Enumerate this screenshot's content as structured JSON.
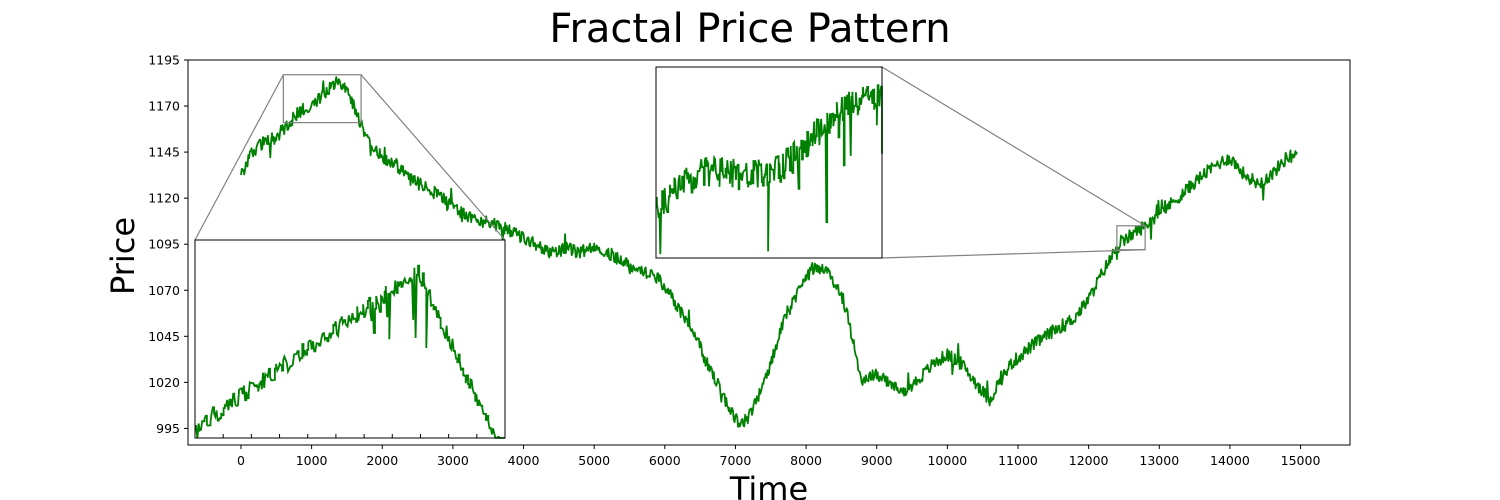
{
  "chart_data": {
    "type": "line",
    "title": "Fractal Price Pattern",
    "xlabel": "Time",
    "ylabel": "Price",
    "xlim": [
      -750,
      15700
    ],
    "ylim": [
      986,
      1195
    ],
    "x_ticks": [
      "0",
      "1000",
      "2000",
      "3000",
      "4000",
      "5000",
      "6000",
      "7000",
      "8000",
      "9000",
      "10000",
      "11000",
      "12000",
      "13000",
      "14000",
      "15000"
    ],
    "y_ticks": [
      "995",
      "1020",
      "1045",
      "1070",
      "1095",
      "1120",
      "1145",
      "1170",
      "1195"
    ],
    "grid": false,
    "line_color": "#008000",
    "connector_color": "#808080",
    "series": [
      {
        "x": [
          0,
          150,
          300,
          450,
          600,
          750,
          900,
          1050,
          1200,
          1350,
          1500,
          1650,
          1800,
          2000,
          2200,
          2400,
          2600,
          2800,
          3000,
          3200,
          3400,
          3600,
          3800,
          4000,
          4200,
          4400,
          4600,
          4800,
          5000,
          5200,
          5400,
          5600,
          5800,
          6000,
          6200,
          6400,
          6600,
          6800,
          7000,
          7100,
          7200,
          7350,
          7500,
          7700,
          7900,
          8100,
          8300,
          8500,
          8600,
          8700,
          8800,
          9000,
          9200,
          9400,
          9600,
          9800,
          10000,
          10200,
          10400,
          10600,
          10700,
          10900,
          11200,
          11500,
          11800,
          12000,
          12200,
          12400,
          12600,
          12800,
          13000,
          13200,
          13400,
          13600,
          13800,
          14000,
          14200,
          14400,
          14600,
          14800,
          14950
        ],
        "y": [
          1132,
          1145,
          1150,
          1152,
          1157,
          1164,
          1169,
          1172,
          1178,
          1184,
          1180,
          1165,
          1150,
          1142,
          1138,
          1130,
          1126,
          1122,
          1115,
          1110,
          1108,
          1106,
          1102,
          1098,
          1095,
          1090,
          1093,
          1090,
          1095,
          1090,
          1086,
          1082,
          1080,
          1072,
          1060,
          1048,
          1030,
          1015,
          1000,
          998,
          1002,
          1015,
          1030,
          1055,
          1072,
          1082,
          1080,
          1068,
          1055,
          1035,
          1020,
          1025,
          1018,
          1015,
          1022,
          1030,
          1035,
          1030,
          1020,
          1010,
          1018,
          1030,
          1040,
          1048,
          1055,
          1065,
          1080,
          1093,
          1100,
          1105,
          1112,
          1118,
          1125,
          1132,
          1138,
          1142,
          1133,
          1128,
          1133,
          1142,
          1145
        ]
      }
    ],
    "insets": [
      {
        "source_x_range": [
          600,
          1700
        ],
        "source_y_range": [
          1161,
          1187
        ]
      },
      {
        "source_x_range": [
          12400,
          12800
        ],
        "source_y_range": [
          1092,
          1105
        ]
      }
    ]
  }
}
